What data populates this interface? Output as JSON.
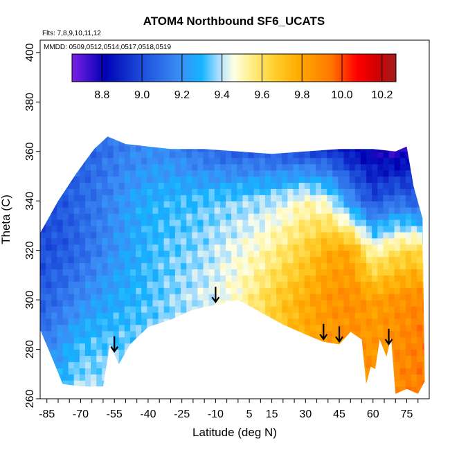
{
  "chart_data": {
    "type": "heatmap",
    "title": "ATOM4 Northbound SF6_UCATS",
    "annotations": {
      "flights": "Flts: 7,8,9,10,11,12",
      "dates": "MMDD: 0509,0512,0514,0517,0518,0519"
    },
    "xlabel": "Latitude (deg N)",
    "ylabel": "Theta (C)",
    "xlim": [
      -88,
      85
    ],
    "ylim": [
      260,
      405
    ],
    "x_ticks": [
      -85,
      -70,
      -55,
      -40,
      -25,
      -10,
      5,
      15,
      30,
      45,
      60,
      75
    ],
    "y_ticks": [
      260,
      280,
      300,
      320,
      340,
      360,
      380,
      400
    ],
    "arrows_latitude": [
      -55,
      -10,
      38,
      45,
      67
    ],
    "colorbar": {
      "min": 8.65,
      "max": 10.27,
      "ticks": [
        8.8,
        9.0,
        9.2,
        9.4,
        9.6,
        9.8,
        10.0,
        10.2
      ],
      "colors": [
        "#7b1fe6",
        "#0000b4",
        "#1e50dc",
        "#3c8cf5",
        "#14b4ff",
        "#a5dcff",
        "#ffffe6",
        "#fff08c",
        "#ffd232",
        "#ffaa00",
        "#ff7800",
        "#ff0000",
        "#d20000",
        "#a01e1e"
      ],
      "color_stops": [
        0,
        0.1,
        0.22,
        0.33,
        0.4,
        0.45,
        0.5,
        0.55,
        0.62,
        0.7,
        0.8,
        0.88,
        0.94,
        1
      ]
    },
    "field": {
      "lat_grid": [
        -88,
        -80,
        -70,
        -60,
        -50,
        -40,
        -30,
        -20,
        -10,
        0,
        10,
        20,
        30,
        40,
        50,
        60,
        70,
        80,
        85
      ],
      "theta_grid": [
        260,
        280,
        300,
        320,
        340,
        360
      ],
      "values": [
        [
          9.2,
          9.3,
          9.42,
          9.38,
          9.4,
          9.42,
          9.44,
          9.46,
          9.48,
          9.55,
          9.62,
          9.7,
          9.78,
          9.82,
          9.85,
          9.88,
          9.9,
          9.92,
          9.92
        ],
        [
          9.12,
          9.22,
          9.32,
          9.34,
          9.35,
          9.36,
          9.4,
          9.42,
          9.46,
          9.52,
          9.6,
          9.7,
          9.78,
          9.84,
          9.86,
          9.85,
          9.88,
          9.92,
          9.92
        ],
        [
          9.05,
          9.1,
          9.18,
          9.24,
          9.28,
          9.32,
          9.36,
          9.4,
          9.44,
          9.5,
          9.6,
          9.7,
          9.78,
          9.85,
          9.88,
          9.82,
          9.86,
          9.9,
          9.9
        ],
        [
          9.0,
          9.02,
          9.08,
          9.16,
          9.24,
          9.3,
          9.34,
          9.36,
          9.4,
          9.45,
          9.5,
          9.58,
          9.66,
          9.78,
          9.8,
          9.5,
          9.6,
          9.65,
          9.4
        ],
        [
          9.0,
          9.02,
          9.08,
          9.14,
          9.22,
          9.28,
          9.3,
          9.32,
          9.34,
          9.36,
          9.38,
          9.42,
          9.5,
          9.45,
          9.2,
          9.0,
          9.1,
          9.05,
          9.0
        ],
        [
          9.0,
          9.02,
          9.05,
          9.1,
          9.15,
          9.18,
          9.18,
          9.12,
          9.08,
          9.05,
          9.05,
          9.02,
          9.0,
          8.95,
          8.85,
          8.8,
          8.75,
          8.8,
          8.8
        ]
      ],
      "lower_boundary": [
        [
          -88,
          288
        ],
        [
          -82,
          275
        ],
        [
          -78,
          266
        ],
        [
          -70,
          265
        ],
        [
          -60,
          265
        ],
        [
          -57,
          282
        ],
        [
          -53,
          274
        ],
        [
          -48,
          282
        ],
        [
          -40,
          289
        ],
        [
          -30,
          292
        ],
        [
          -20,
          296
        ],
        [
          -10,
          298
        ],
        [
          0,
          300
        ],
        [
          10,
          295
        ],
        [
          20,
          290
        ],
        [
          30,
          286
        ],
        [
          38,
          283
        ],
        [
          45,
          282
        ],
        [
          50,
          287
        ],
        [
          55,
          284
        ],
        [
          57,
          266
        ],
        [
          59,
          273
        ],
        [
          61,
          272
        ],
        [
          63,
          284
        ],
        [
          66,
          277
        ],
        [
          68,
          285
        ],
        [
          70,
          262
        ],
        [
          75,
          264
        ],
        [
          80,
          262
        ],
        [
          83,
          267
        ]
      ],
      "upper_boundary": [
        [
          -88,
          327
        ],
        [
          -80,
          340
        ],
        [
          -72,
          351
        ],
        [
          -64,
          361
        ],
        [
          -58,
          366
        ],
        [
          -50,
          363
        ],
        [
          -30,
          361
        ],
        [
          -15,
          361
        ],
        [
          0,
          360
        ],
        [
          15,
          359
        ],
        [
          30,
          360
        ],
        [
          45,
          361
        ],
        [
          60,
          361
        ],
        [
          70,
          360
        ],
        [
          75,
          362
        ],
        [
          78,
          346
        ],
        [
          82,
          333
        ]
      ]
    }
  }
}
